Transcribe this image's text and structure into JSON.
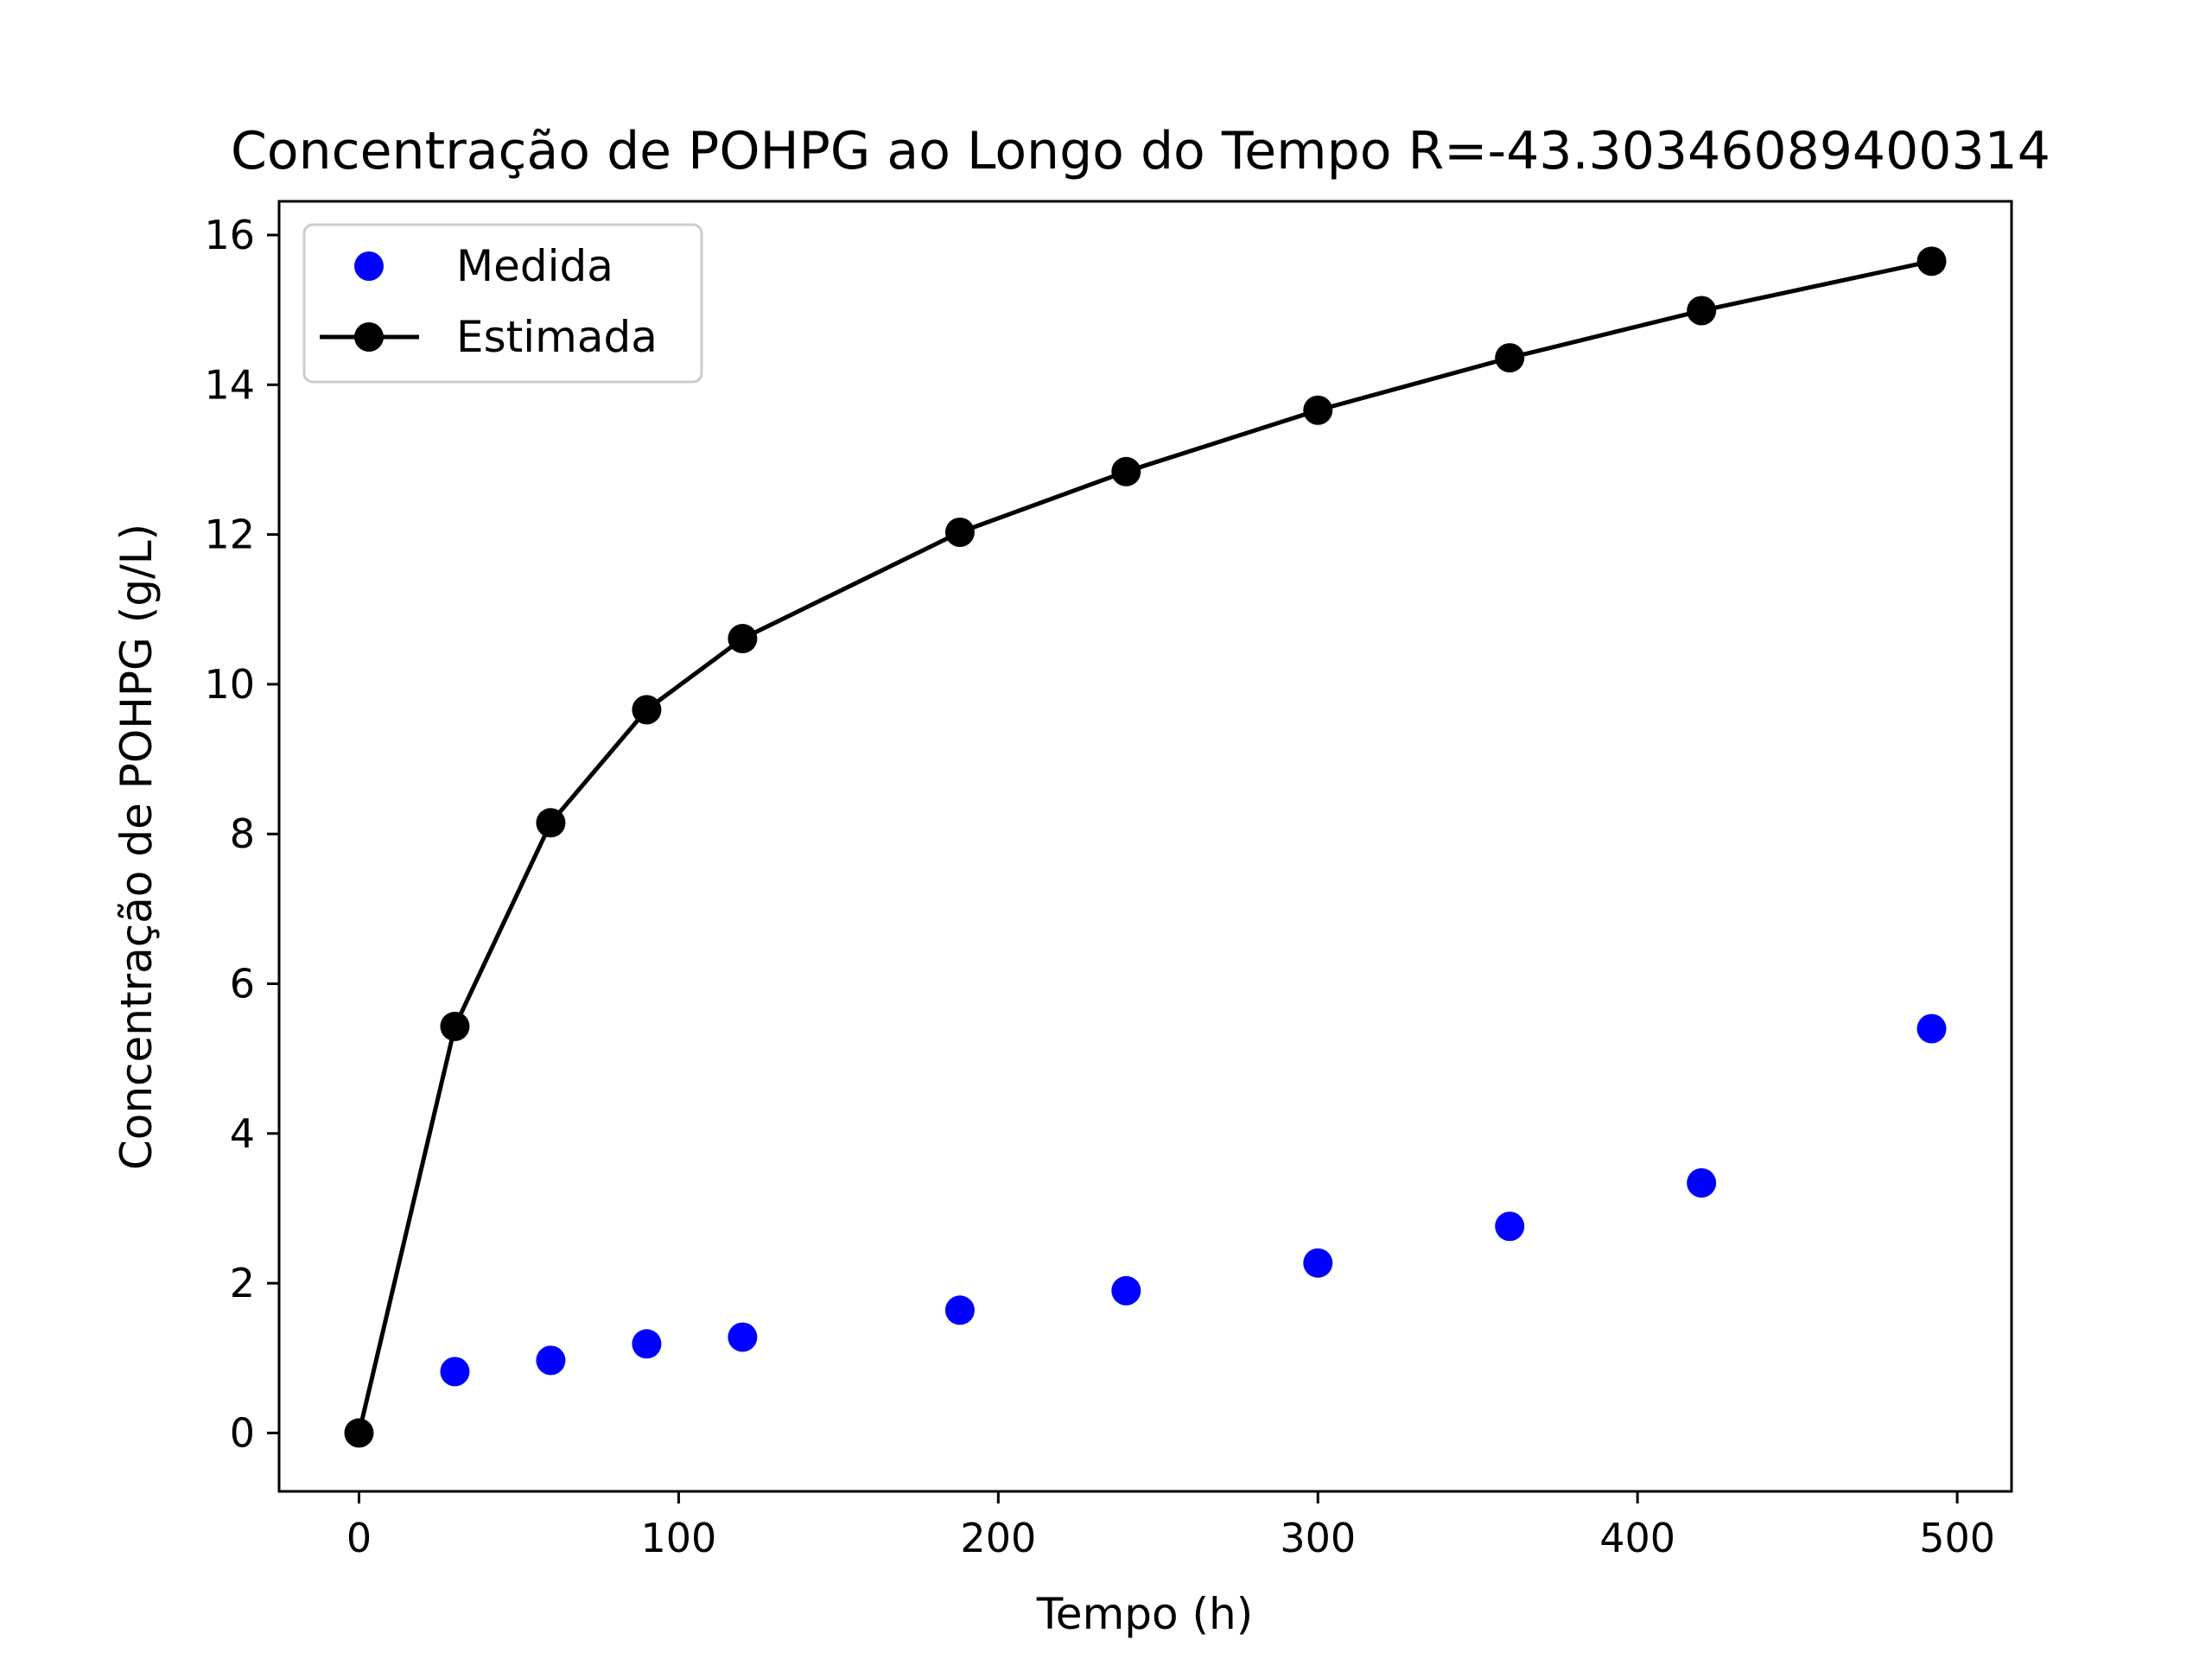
{
  "chart_data": {
    "type": "line",
    "title": "Concentração de POHPG ao Longo do Tempo R=-43.30346089400314",
    "xlabel": "Tempo (h)",
    "ylabel": "Concentração de POHPG (g/L)",
    "xlim": [
      -25,
      517
    ],
    "ylim": [
      -0.78,
      16.45
    ],
    "xticks": [
      0,
      100,
      200,
      300,
      400,
      500
    ],
    "yticks": [
      0,
      2,
      4,
      6,
      8,
      10,
      12,
      14,
      16
    ],
    "grid": false,
    "legend_position": "top-left",
    "series": [
      {
        "name": "Medida",
        "style": "markers",
        "color": "#0000ff",
        "x": [
          30,
          60,
          90,
          120,
          188,
          240,
          300,
          360,
          420,
          492
        ],
        "y": [
          0.82,
          0.97,
          1.19,
          1.28,
          1.64,
          1.9,
          2.27,
          2.76,
          3.34,
          5.4
        ]
      },
      {
        "name": "Estimada",
        "style": "line-markers",
        "color": "#000000",
        "x": [
          0,
          30,
          60,
          90,
          120,
          188,
          240,
          300,
          360,
          420,
          492
        ],
        "y": [
          0.0,
          5.43,
          8.15,
          9.66,
          10.61,
          12.03,
          12.84,
          13.66,
          14.36,
          14.99,
          15.65
        ]
      }
    ]
  }
}
